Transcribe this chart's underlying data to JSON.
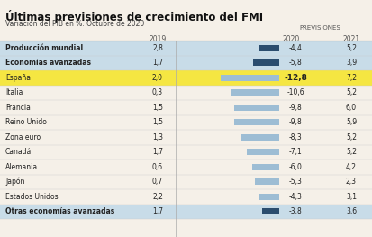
{
  "title": "Últimas previsiones de crecimiento del FMI",
  "subtitle": "Variación del PIB en %. Octubre de 2020",
  "previsiones_label": "PREVISIONES",
  "col_2019": "2019",
  "col_2020": "2020",
  "col_2021": "2021",
  "rows": [
    {
      "label": "Producción mundial",
      "bold": true,
      "highlight": "blue",
      "val2019": 2.8,
      "val2020": -4.4,
      "val2021": 5.2
    },
    {
      "label": "Economías avanzadas",
      "bold": true,
      "highlight": "blue",
      "val2019": 1.7,
      "val2020": -5.8,
      "val2021": 3.9
    },
    {
      "label": "España",
      "bold": false,
      "highlight": "yellow",
      "val2019": 2.0,
      "val2020": -12.8,
      "val2021": 7.2
    },
    {
      "label": "Italia",
      "bold": false,
      "highlight": "none",
      "val2019": 0.3,
      "val2020": -10.6,
      "val2021": 5.2
    },
    {
      "label": "Francia",
      "bold": false,
      "highlight": "none",
      "val2019": 1.5,
      "val2020": -9.8,
      "val2021": 6.0
    },
    {
      "label": "Reino Unido",
      "bold": false,
      "highlight": "none",
      "val2019": 1.5,
      "val2020": -9.8,
      "val2021": 5.9
    },
    {
      "label": "Zona euro",
      "bold": false,
      "highlight": "none",
      "val2019": 1.3,
      "val2020": -8.3,
      "val2021": 5.2
    },
    {
      "label": "Canadá",
      "bold": false,
      "highlight": "none",
      "val2019": 1.7,
      "val2020": -7.1,
      "val2021": 5.2
    },
    {
      "label": "Alemania",
      "bold": false,
      "highlight": "none",
      "val2019": 0.6,
      "val2020": -6.0,
      "val2021": 4.2
    },
    {
      "label": "Japón",
      "bold": false,
      "highlight": "none",
      "val2019": 0.7,
      "val2020": -5.3,
      "val2021": 2.3
    },
    {
      "label": "Estados Unidos",
      "bold": false,
      "highlight": "none",
      "val2019": 2.2,
      "val2020": -4.3,
      "val2021": 3.1
    },
    {
      "label": "Otras economías avanzadas",
      "bold": true,
      "highlight": "blue",
      "val2019": 1.7,
      "val2020": -3.8,
      "val2021": 3.6
    }
  ],
  "bg_color": "#f5f0e8",
  "blue_row_color": "#c8dce8",
  "yellow_row_color": "#f5e642",
  "bar_blue_dark": "#2b4d6e",
  "bar_blue_light": "#9dbdd4",
  "bar_yellow": "#c8b400",
  "divider_color": "#888888",
  "text_color": "#222222",
  "light_text_color": "#555555"
}
